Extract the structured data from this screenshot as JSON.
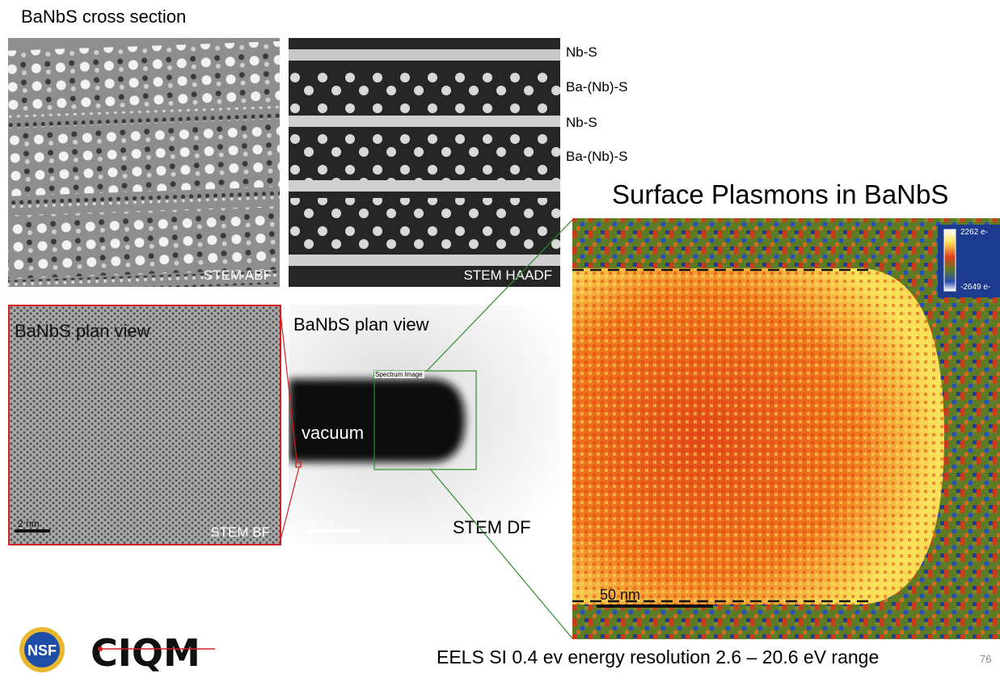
{
  "slide": {
    "title": "BaNbS cross section",
    "plasmon_title": "Surface Plasmons in BaNbS",
    "footer": "EELS SI 0.4 ev energy resolution 2.6 – 20.6 eV range",
    "page_number": "76"
  },
  "panels": {
    "abf": {
      "label": "STEM ABF"
    },
    "haadf": {
      "label": "STEM HAADF"
    },
    "bf": {
      "title": "BaNbS plan view",
      "label": "STEM BF",
      "scale": "2 nm"
    },
    "df": {
      "title": "BaNbS plan view",
      "label": "STEM DF",
      "scale": "100 nm",
      "vacuum": "vacuum",
      "box_label": "Spectrum Image"
    },
    "eels": {
      "scale": "50 nm",
      "colorbar_max": "2262 e-",
      "colorbar_min": "-2649 e-"
    }
  },
  "layers": [
    "Nb-S",
    "Ba-(Nb)-S",
    "Nb-S",
    "Ba-(Nb)-S"
  ],
  "logos": {
    "nsf": "NSF",
    "ciqm": "CIQM"
  },
  "colors": {
    "bf_frame": "#d42020",
    "guide_lines": "#2e8b2e"
  }
}
